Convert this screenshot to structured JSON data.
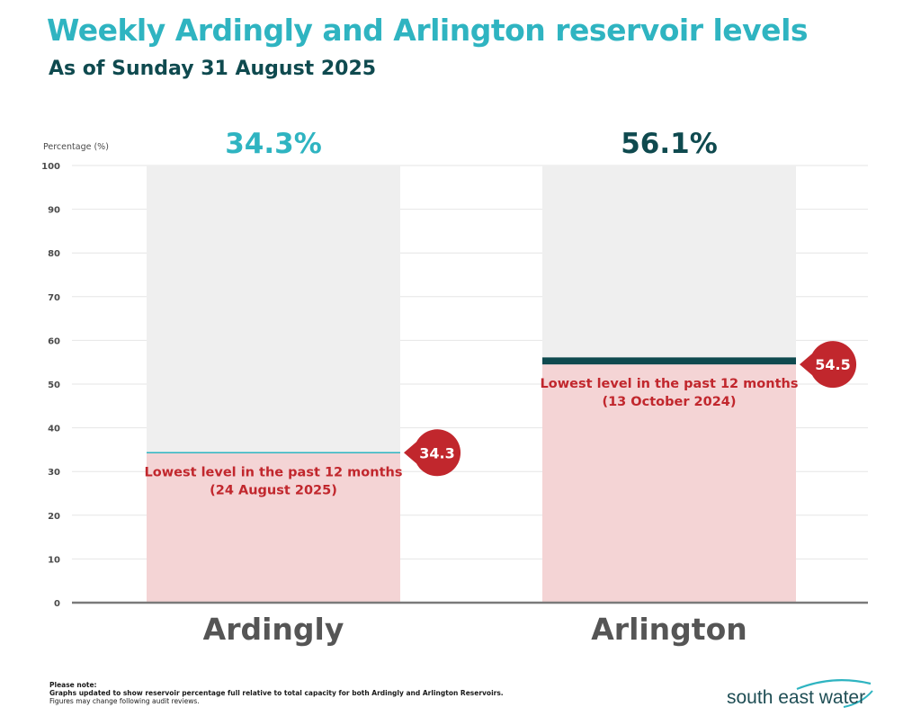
{
  "header": {
    "title": "Weekly Ardingly and Arlington reservoir levels",
    "subtitle": "As of Sunday 31 August 2025"
  },
  "chart_data": {
    "type": "bar",
    "ylabel": "Percentage (%)",
    "ylim": [
      0,
      100
    ],
    "yticks": [
      0,
      10,
      20,
      30,
      40,
      50,
      60,
      70,
      80,
      90,
      100
    ],
    "grid": true,
    "categories": [
      "Ardingly",
      "Arlington"
    ],
    "values": [
      34.3,
      56.1
    ],
    "value_labels": [
      "34.3%",
      "56.1%"
    ],
    "lowest_levels": [
      34.3,
      54.5
    ],
    "lowest_level_labels": [
      "34.3",
      "54.5"
    ],
    "annotation_lines": [
      [
        "Lowest level in the past 12 months",
        "(24 August 2025)"
      ],
      [
        "Lowest level in the past 12 months",
        "(13 October 2024)"
      ]
    ],
    "colors": {
      "ardingly": "#2fb4c1",
      "arlington": "#0f4a4f",
      "capacity": "#efefef",
      "lowest_fill": "#f4d4d5",
      "annotation": "#c1272d",
      "axis_text": "#4a4a4a",
      "category_text": "#555555"
    }
  },
  "footer": {
    "note_heading": "Please note:",
    "note_line1": "Graphs updated to show reservoir percentage full relative to total capacity for both Ardingly and Arlington Reservoirs.",
    "note_line2": "Figures may change following audit reviews.",
    "logo_text": "south east water"
  }
}
